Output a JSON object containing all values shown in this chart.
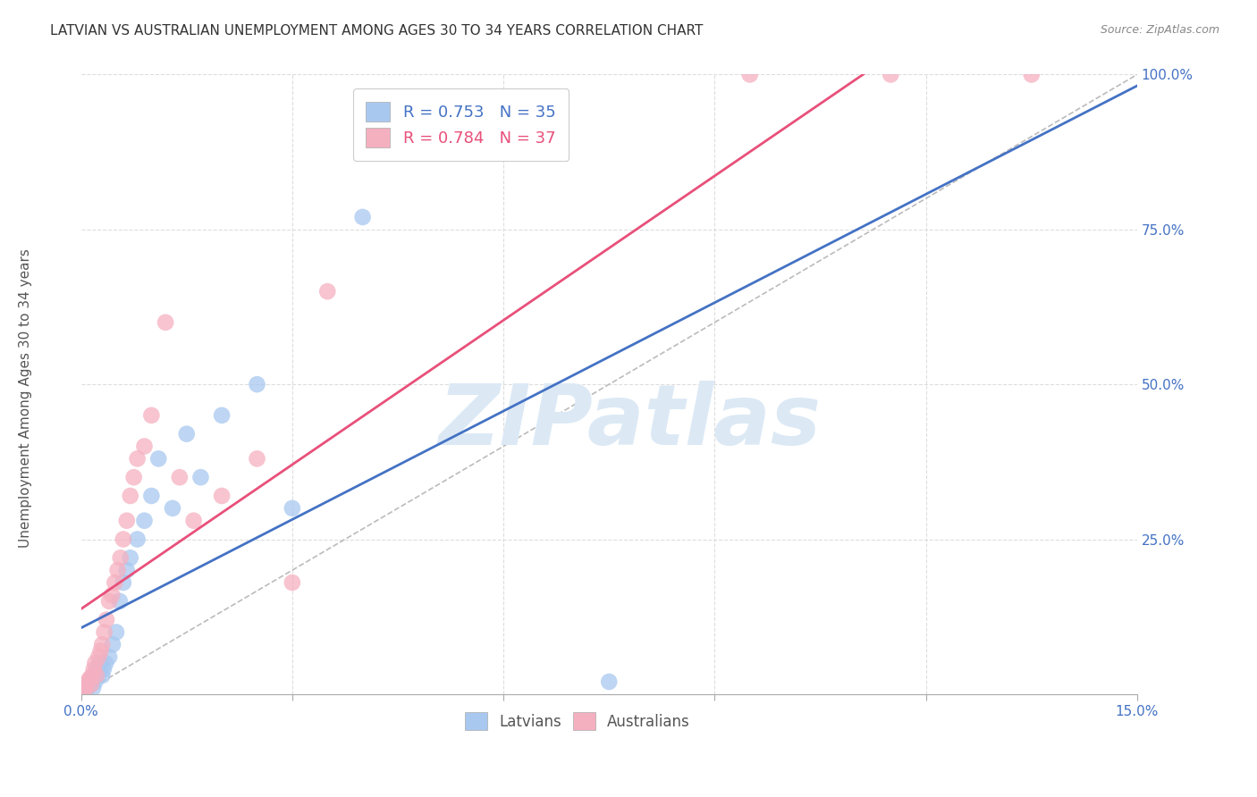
{
  "title": "LATVIAN VS AUSTRALIAN UNEMPLOYMENT AMONG AGES 30 TO 34 YEARS CORRELATION CHART",
  "source": "Source: ZipAtlas.com",
  "xlim": [
    0.0,
    15.0
  ],
  "ylim": [
    0.0,
    100.0
  ],
  "ylabel": "Unemployment Among Ages 30 to 34 years",
  "latvian_color": "#a8c8f0",
  "australian_color": "#f5b0c0",
  "line_latvian_color": "#4472c4",
  "line_australian_color": "#e8507a",
  "legend_latvian_R": "R = 0.753",
  "legend_latvian_N": "N = 35",
  "legend_australian_R": "R = 0.784",
  "legend_australian_N": "N = 37",
  "latvian_x": [
    0.05,
    0.07,
    0.08,
    0.1,
    0.12,
    0.13,
    0.15,
    0.17,
    0.18,
    0.2,
    0.22,
    0.25,
    0.27,
    0.3,
    0.32,
    0.35,
    0.4,
    0.45,
    0.5,
    0.55,
    0.6,
    0.65,
    0.7,
    0.8,
    0.9,
    1.0,
    1.1,
    1.3,
    1.5,
    1.7,
    2.0,
    2.5,
    3.0,
    4.0,
    7.5
  ],
  "latvian_y": [
    0.5,
    1.0,
    0.8,
    1.2,
    1.5,
    2.0,
    2.5,
    1.0,
    3.0,
    2.0,
    4.0,
    3.5,
    5.0,
    3.0,
    4.0,
    5.0,
    6.0,
    8.0,
    10.0,
    15.0,
    18.0,
    20.0,
    22.0,
    25.0,
    28.0,
    32.0,
    38.0,
    30.0,
    42.0,
    35.0,
    45.0,
    50.0,
    30.0,
    77.0,
    2.0
  ],
  "australian_x": [
    0.04,
    0.06,
    0.08,
    0.1,
    0.12,
    0.14,
    0.16,
    0.18,
    0.2,
    0.22,
    0.25,
    0.28,
    0.3,
    0.33,
    0.36,
    0.4,
    0.44,
    0.48,
    0.52,
    0.56,
    0.6,
    0.65,
    0.7,
    0.75,
    0.8,
    0.9,
    1.0,
    1.2,
    1.4,
    1.6,
    2.0,
    2.5,
    3.0,
    3.5,
    9.5,
    11.5,
    13.5
  ],
  "australian_y": [
    0.5,
    1.0,
    1.5,
    2.0,
    2.5,
    1.5,
    3.0,
    4.0,
    5.0,
    3.0,
    6.0,
    7.0,
    8.0,
    10.0,
    12.0,
    15.0,
    16.0,
    18.0,
    20.0,
    22.0,
    25.0,
    28.0,
    32.0,
    35.0,
    38.0,
    40.0,
    45.0,
    60.0,
    35.0,
    28.0,
    32.0,
    38.0,
    18.0,
    65.0,
    100.0,
    100.0,
    100.0
  ],
  "background_color": "#ffffff",
  "grid_color": "#dddddd",
  "watermark_text": "ZIPatlas",
  "watermark_color": "#dce9f5",
  "ref_line_color": "#bbbbbb"
}
